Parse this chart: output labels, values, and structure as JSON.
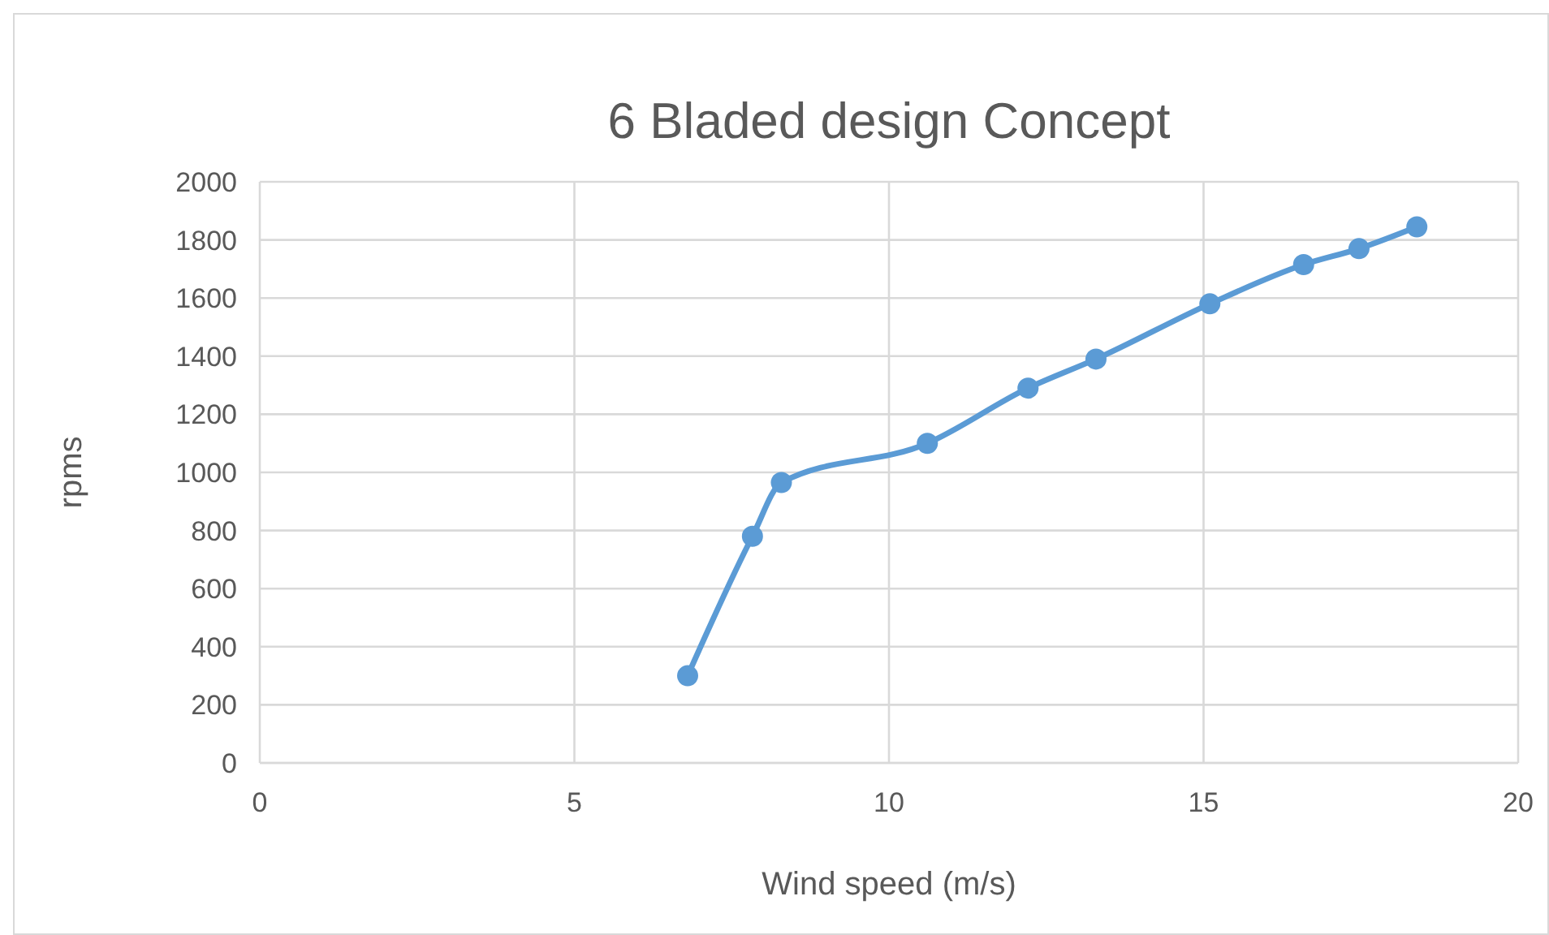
{
  "chart_data": {
    "type": "line",
    "title": "6 Bladed design Concept",
    "xlabel": "Wind speed (m/s)",
    "ylabel": "rpms",
    "x": [
      6.8,
      7.83,
      8.29,
      10.61,
      12.21,
      13.29,
      15.1,
      16.59,
      17.47,
      18.39
    ],
    "series": [
      {
        "color": "#5b9bd5",
        "values": [
          300,
          780,
          965,
          1100,
          1290,
          1390,
          1580,
          1715,
          1770,
          1845
        ]
      }
    ],
    "xlim": [
      0,
      20
    ],
    "xticks": [
      0,
      5,
      10,
      15,
      20
    ],
    "ylim": [
      0,
      2000
    ],
    "yticks": [
      0,
      200,
      400,
      600,
      800,
      1000,
      1200,
      1400,
      1600,
      1800,
      2000
    ],
    "grid": true,
    "marker": "circle",
    "line_style": "solid"
  }
}
